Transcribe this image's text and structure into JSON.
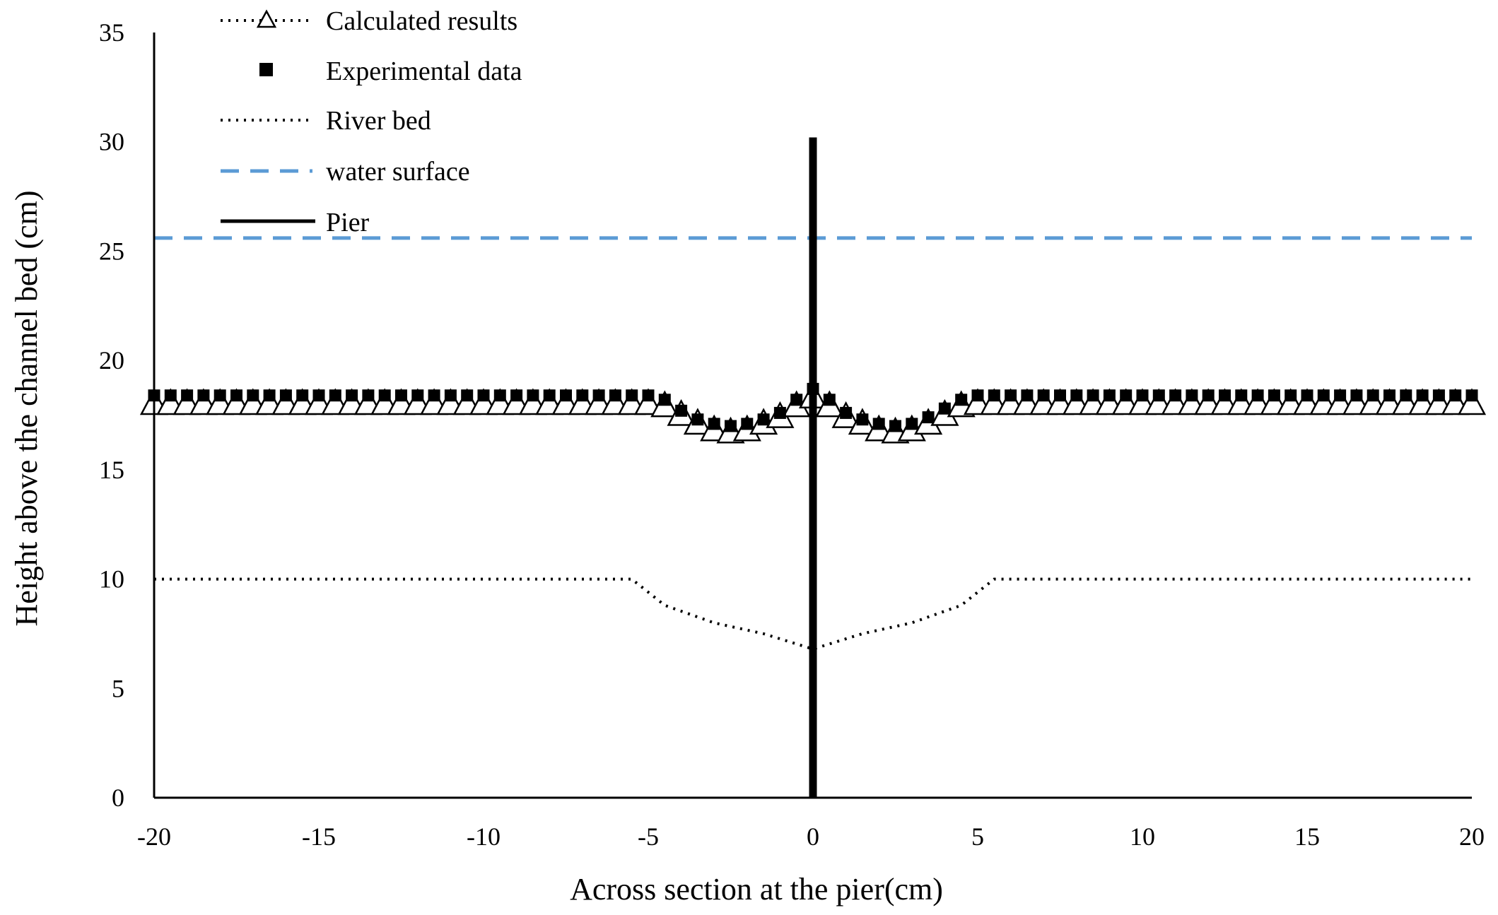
{
  "chart_data": {
    "type": "line",
    "title": "",
    "xlabel": "Across section at the pier(cm)",
    "ylabel": "Height above the channel bed (cm)",
    "xlim": [
      -20,
      20
    ],
    "ylim": [
      0,
      35
    ],
    "xticks": [
      -20,
      -15,
      -10,
      -5,
      0,
      5,
      10,
      15,
      20
    ],
    "yticks": [
      0,
      5,
      10,
      15,
      20,
      25,
      30,
      35
    ],
    "grid": false,
    "legend_position": "top-left",
    "colors": {
      "water": "#5b9bd5",
      "ink": "#000000"
    },
    "legend": [
      {
        "key": "calculated",
        "label": "Calculated results"
      },
      {
        "key": "experimental",
        "label": "Experimental data"
      },
      {
        "key": "riverbed",
        "label": "River bed"
      },
      {
        "key": "water",
        "label": "water surface"
      },
      {
        "key": "pier",
        "label": "Pier"
      }
    ],
    "series": [
      {
        "name": "Calculated results",
        "marker": "triangle-open",
        "line": "dotted",
        "x": [
          -20,
          -19.5,
          -19,
          -18.5,
          -18,
          -17.5,
          -17,
          -16.5,
          -16,
          -15.5,
          -15,
          -14.5,
          -14,
          -13.5,
          -13,
          -12.5,
          -12,
          -11.5,
          -11,
          -10.5,
          -10,
          -9.5,
          -9,
          -8.5,
          -8,
          -7.5,
          -7,
          -6.5,
          -6,
          -5.5,
          -5,
          -4.5,
          -4,
          -3.5,
          -3,
          -2.5,
          -2,
          -1.5,
          -1,
          -0.5,
          0,
          0.5,
          1,
          1.5,
          2,
          2.5,
          3,
          3.5,
          4,
          4.5,
          5,
          5.5,
          6,
          6.5,
          7,
          7.5,
          8,
          8.5,
          9,
          9.5,
          10,
          10.5,
          11,
          11.5,
          12,
          12.5,
          13,
          13.5,
          14,
          14.5,
          15,
          15.5,
          16,
          16.5,
          17,
          17.5,
          18,
          18.5,
          19,
          19.5,
          20
        ],
        "y": [
          18,
          18,
          18,
          18,
          18,
          18,
          18,
          18,
          18,
          18,
          18,
          18,
          18,
          18,
          18,
          18,
          18,
          18,
          18,
          18,
          18,
          18,
          18,
          18,
          18,
          18,
          18,
          18,
          18,
          18,
          18,
          17.9,
          17.5,
          17.1,
          16.8,
          16.7,
          16.8,
          17.1,
          17.4,
          17.9,
          18.3,
          17.9,
          17.4,
          17.1,
          16.8,
          16.7,
          16.8,
          17.1,
          17.5,
          17.9,
          18,
          18,
          18,
          18,
          18,
          18,
          18,
          18,
          18,
          18,
          18,
          18,
          18,
          18,
          18,
          18,
          18,
          18,
          18,
          18,
          18,
          18,
          18,
          18,
          18,
          18,
          18,
          18,
          18,
          18,
          18
        ]
      },
      {
        "name": "Experimental data",
        "marker": "square-filled",
        "line": "none",
        "x": [
          -20,
          -19.5,
          -19,
          -18.5,
          -18,
          -17.5,
          -17,
          -16.5,
          -16,
          -15.5,
          -15,
          -14.5,
          -14,
          -13.5,
          -13,
          -12.5,
          -12,
          -11.5,
          -11,
          -10.5,
          -10,
          -9.5,
          -9,
          -8.5,
          -8,
          -7.5,
          -7,
          -6.5,
          -6,
          -5.5,
          -5,
          -4.5,
          -4,
          -3.5,
          -3,
          -2.5,
          -2,
          -1.5,
          -1,
          -0.5,
          0,
          0.5,
          1,
          1.5,
          2,
          2.5,
          3,
          3.5,
          4,
          4.5,
          5,
          5.5,
          6,
          6.5,
          7,
          7.5,
          8,
          8.5,
          9,
          9.5,
          10,
          10.5,
          11,
          11.5,
          12,
          12.5,
          13,
          13.5,
          14,
          14.5,
          15,
          15.5,
          16,
          16.5,
          17,
          17.5,
          18,
          18.5,
          19,
          19.5,
          20
        ],
        "y": [
          18.4,
          18.4,
          18.4,
          18.4,
          18.4,
          18.4,
          18.4,
          18.4,
          18.4,
          18.4,
          18.4,
          18.4,
          18.4,
          18.4,
          18.4,
          18.4,
          18.4,
          18.4,
          18.4,
          18.4,
          18.4,
          18.4,
          18.4,
          18.4,
          18.4,
          18.4,
          18.4,
          18.4,
          18.4,
          18.4,
          18.4,
          18.2,
          17.7,
          17.3,
          17.1,
          17,
          17.1,
          17.3,
          17.6,
          18.2,
          18.7,
          18.2,
          17.6,
          17.3,
          17.1,
          17,
          17.1,
          17.4,
          17.8,
          18.2,
          18.4,
          18.4,
          18.4,
          18.4,
          18.4,
          18.4,
          18.4,
          18.4,
          18.4,
          18.4,
          18.4,
          18.4,
          18.4,
          18.4,
          18.4,
          18.4,
          18.4,
          18.4,
          18.4,
          18.4,
          18.4,
          18.4,
          18.4,
          18.4,
          18.4,
          18.4,
          18.4,
          18.4,
          18.4,
          18.4,
          18.4
        ]
      },
      {
        "name": "River bed",
        "marker": "none",
        "line": "dotted",
        "x": [
          -20,
          -5.5,
          -4.5,
          -3,
          -1.5,
          0,
          1.5,
          3,
          4.5,
          5.5,
          20
        ],
        "y": [
          10,
          10,
          8.8,
          8,
          7.5,
          6.8,
          7.5,
          8,
          8.8,
          10,
          10
        ]
      },
      {
        "name": "water surface",
        "marker": "none",
        "line": "dashed",
        "x": [
          -20,
          20
        ],
        "y": [
          25.6,
          25.6
        ]
      },
      {
        "name": "Pier",
        "marker": "none",
        "line": "solid-thick",
        "x": [
          0,
          0
        ],
        "y": [
          0,
          30.2
        ]
      }
    ]
  }
}
